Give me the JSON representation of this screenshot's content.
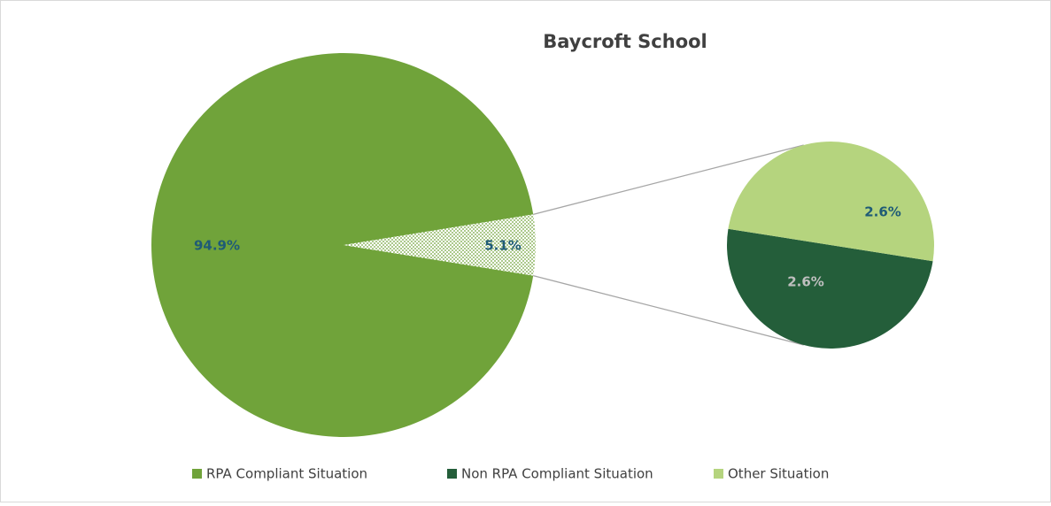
{
  "chart_data": {
    "type": "pie-of-pie",
    "title": "Baycroft School",
    "categories": [
      "RPA Compliant Situation",
      "Non RPA Compliant Situation",
      "Other Situation"
    ],
    "values": [
      94.9,
      2.6,
      2.6
    ],
    "value_labels": [
      "94.9%",
      "2.6%",
      "2.6%"
    ],
    "colors": [
      "#70a33a",
      "#245e3a",
      "#b5d47e"
    ],
    "secondary_total": 5.1,
    "secondary_total_label": "5.1%",
    "legend": "bottom"
  }
}
